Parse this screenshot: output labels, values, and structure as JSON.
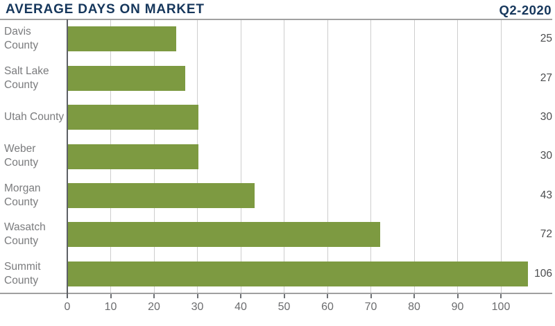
{
  "header": {
    "title": "AVERAGE DAYS ON MARKET",
    "period": "Q2-2020"
  },
  "colors": {
    "title_navy": "#16375c",
    "bar_green": "#7d9a41",
    "category_label_gray": "#7a7b7d",
    "value_label_dark": "#4b4c4e",
    "tick_label_gray": "#6b6c6e",
    "gridline_gray": "#cdcdcd",
    "axis_line_gray": "#a0a0a0",
    "zero_axis_dark": "#5d6065"
  },
  "chart_data": {
    "type": "bar",
    "orientation": "horizontal",
    "title": "AVERAGE DAYS ON MARKET",
    "subtitle": "Q2-2020",
    "categories": [
      "Davis County",
      "Salt Lake County",
      "Utah County",
      "Weber County",
      "Morgan County",
      "Wasatch County",
      "Summit County"
    ],
    "values": [
      25,
      27,
      30,
      30,
      43,
      72,
      106
    ],
    "value_labels": [
      "25",
      "27",
      "30",
      "30",
      "43",
      "72",
      "106"
    ],
    "x_ticks": [
      0,
      10,
      20,
      30,
      40,
      50,
      60,
      70,
      80,
      90,
      100
    ],
    "xlim": [
      0,
      111.8
    ],
    "xlabel": "",
    "ylabel": "",
    "grid": "vertical",
    "legend": "none",
    "bar_color": "#7d9a41"
  }
}
